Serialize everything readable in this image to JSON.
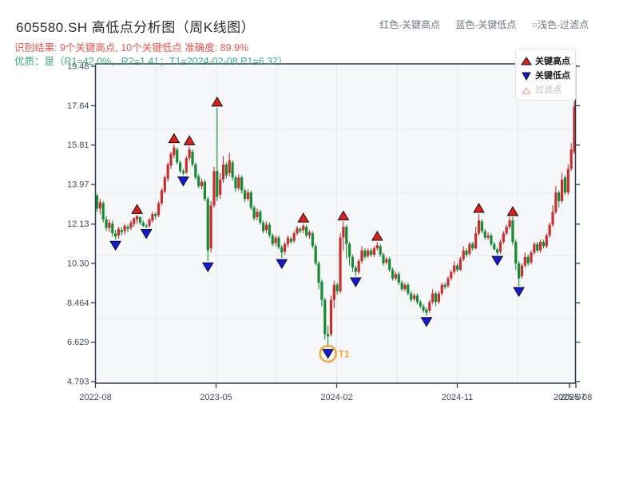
{
  "header": {
    "title": "605580.SH 高低点分析图（周K线图）",
    "result_line": "识别结果: 9个关键高点, 10个关键低点  准确度: 89.9%",
    "quality_line": "优质：是（R1=42.0%，R2=1.41；T1=2024-02-08 P1=6.37）",
    "hint_high": "红色-关键高点",
    "hint_low": "蓝色-关键低点",
    "hint_filter": "○浅色-过滤点"
  },
  "legend": {
    "items": [
      {
        "label": "关键高点",
        "marker": "up-triangle",
        "color": "#e11d1d"
      },
      {
        "label": "关键低点",
        "marker": "down-triangle",
        "color": "#1617dc"
      },
      {
        "label": "过滤点",
        "marker": "open-triangle",
        "color": "#ffffff"
      }
    ]
  },
  "colors": {
    "up_candle": "#c62f2f",
    "down_candle": "#188a34",
    "marker_high": "#e11d1d",
    "marker_low": "#1617dc",
    "marker_edge": "#111111",
    "filter_edge": "#ee8e8e",
    "t1_orange": "#efa83a",
    "grid": "#e6e8eb",
    "plot_bg": "#f6f7f9",
    "border": "#2b3b55",
    "axis_text": "#414b5e"
  },
  "chart_data": {
    "type": "candlestick",
    "title": "605580.SH 高低点分析图（周K线图）",
    "frequency": "weekly",
    "start_date": "2022-08-05",
    "x_axis": {
      "tick_labels": [
        "2022-08",
        "2023-05",
        "2024-02",
        "2024-11",
        "2025-07",
        "2025-08"
      ]
    },
    "y_axis": {
      "tick_labels": [
        "19.48",
        "17.64",
        "15.81",
        "13.97",
        "12.13",
        "10.30",
        "8.464",
        "6.629",
        "4.793"
      ],
      "range": [
        4.793,
        19.48
      ]
    },
    "candles": [
      [
        13.45,
        13.55,
        12.7,
        12.85
      ],
      [
        12.85,
        13.3,
        12.6,
        13.15
      ],
      [
        13.1,
        13.2,
        12.2,
        12.35
      ],
      [
        12.35,
        12.5,
        11.8,
        11.95
      ],
      [
        11.95,
        12.35,
        11.75,
        12.2
      ],
      [
        12.15,
        12.3,
        11.55,
        11.7
      ],
      [
        11.7,
        11.85,
        11.4,
        11.55
      ],
      [
        11.6,
        12.0,
        11.45,
        11.9
      ],
      [
        11.85,
        12.0,
        11.6,
        11.75
      ],
      [
        11.8,
        12.15,
        11.65,
        12.05
      ],
      [
        12.0,
        12.1,
        11.75,
        11.9
      ],
      [
        11.95,
        12.3,
        11.85,
        12.2
      ],
      [
        12.15,
        12.45,
        12.0,
        12.4
      ],
      [
        12.35,
        12.55,
        12.15,
        12.5
      ],
      [
        12.45,
        12.5,
        12.1,
        12.2
      ],
      [
        12.2,
        12.3,
        12.0,
        12.05
      ],
      [
        12.05,
        12.15,
        11.95,
        12.0
      ],
      [
        12.05,
        12.4,
        11.95,
        12.35
      ],
      [
        12.3,
        12.7,
        12.2,
        12.6
      ],
      [
        12.6,
        12.7,
        12.35,
        12.5
      ],
      [
        12.55,
        13.2,
        12.45,
        13.1
      ],
      [
        13.1,
        13.8,
        13.0,
        13.7
      ],
      [
        13.65,
        14.4,
        13.55,
        14.3
      ],
      [
        14.25,
        15.0,
        14.1,
        14.9
      ],
      [
        14.85,
        15.5,
        14.7,
        15.4
      ],
      [
        15.35,
        15.85,
        15.2,
        15.7
      ],
      [
        15.6,
        15.7,
        14.9,
        15.0
      ],
      [
        15.0,
        15.1,
        14.5,
        14.6
      ],
      [
        14.6,
        14.7,
        14.4,
        14.5
      ],
      [
        14.55,
        15.3,
        14.45,
        15.2
      ],
      [
        15.2,
        15.75,
        15.1,
        15.6
      ],
      [
        15.5,
        15.6,
        14.8,
        14.9
      ],
      [
        14.9,
        15.0,
        14.2,
        14.3
      ],
      [
        14.35,
        14.45,
        13.8,
        13.9
      ],
      [
        13.9,
        14.25,
        13.75,
        14.1
      ],
      [
        14.1,
        14.2,
        13.2,
        13.3
      ],
      [
        13.3,
        13.4,
        10.4,
        10.9
      ],
      [
        11.0,
        13.2,
        10.8,
        13.0
      ],
      [
        13.0,
        14.8,
        12.9,
        14.6
      ],
      [
        14.6,
        17.55,
        13.2,
        13.4
      ],
      [
        13.5,
        14.5,
        13.3,
        14.2
      ],
      [
        14.2,
        15.3,
        14.05,
        14.9
      ],
      [
        14.9,
        15.0,
        14.25,
        14.4
      ],
      [
        14.5,
        15.45,
        14.35,
        15.1
      ],
      [
        15.0,
        15.1,
        14.15,
        14.3
      ],
      [
        14.3,
        14.4,
        13.65,
        13.8
      ],
      [
        13.8,
        14.45,
        13.7,
        14.3
      ],
      [
        14.3,
        14.4,
        13.55,
        13.7
      ],
      [
        13.7,
        13.8,
        13.15,
        13.3
      ],
      [
        13.3,
        13.75,
        13.2,
        13.6
      ],
      [
        13.6,
        13.7,
        12.8,
        12.9
      ],
      [
        12.9,
        13.0,
        12.3,
        12.4
      ],
      [
        12.45,
        12.85,
        12.3,
        12.7
      ],
      [
        12.7,
        12.8,
        12.1,
        12.2
      ],
      [
        12.2,
        12.3,
        11.7,
        11.8
      ],
      [
        11.85,
        12.25,
        11.7,
        12.1
      ],
      [
        12.1,
        12.2,
        11.5,
        11.6
      ],
      [
        11.6,
        11.7,
        11.1,
        11.2
      ],
      [
        11.25,
        11.6,
        11.1,
        11.5
      ],
      [
        11.5,
        11.6,
        10.95,
        11.05
      ],
      [
        11.05,
        11.15,
        10.55,
        10.8
      ],
      [
        10.85,
        11.3,
        10.7,
        11.2
      ],
      [
        11.2,
        11.6,
        11.05,
        11.5
      ],
      [
        11.45,
        11.55,
        11.2,
        11.3
      ],
      [
        11.35,
        11.8,
        11.25,
        11.7
      ],
      [
        11.7,
        12.05,
        11.6,
        11.95
      ],
      [
        11.9,
        12.0,
        11.7,
        11.8
      ],
      [
        11.85,
        12.15,
        11.7,
        12.05
      ],
      [
        12.0,
        12.1,
        11.5,
        11.6
      ],
      [
        11.6,
        11.85,
        11.45,
        11.75
      ],
      [
        11.7,
        11.8,
        11.0,
        11.1
      ],
      [
        11.1,
        11.2,
        10.2,
        10.3
      ],
      [
        10.3,
        10.4,
        9.1,
        9.4
      ],
      [
        9.45,
        9.55,
        8.3,
        8.6
      ],
      [
        8.6,
        8.7,
        6.75,
        7.0
      ],
      [
        7.0,
        7.4,
        6.37,
        6.9
      ],
      [
        7.0,
        8.8,
        6.9,
        8.6
      ],
      [
        8.6,
        9.5,
        8.2,
        9.3
      ],
      [
        9.3,
        9.4,
        8.85,
        9.0
      ],
      [
        9.0,
        11.7,
        8.9,
        11.5
      ],
      [
        11.5,
        12.25,
        10.9,
        12.0
      ],
      [
        12.0,
        12.1,
        10.5,
        11.2
      ],
      [
        11.2,
        11.3,
        10.2,
        10.6
      ],
      [
        10.6,
        10.7,
        9.9,
        10.1
      ],
      [
        10.1,
        10.2,
        9.7,
        9.9
      ],
      [
        9.9,
        10.5,
        9.8,
        10.4
      ],
      [
        10.4,
        11.1,
        10.3,
        10.9
      ],
      [
        10.9,
        11.0,
        10.5,
        10.6
      ],
      [
        10.65,
        11.0,
        10.55,
        10.9
      ],
      [
        10.9,
        11.0,
        10.6,
        10.7
      ],
      [
        10.7,
        11.1,
        10.6,
        11.0
      ],
      [
        11.0,
        11.3,
        10.9,
        11.15
      ],
      [
        11.1,
        11.2,
        10.6,
        10.7
      ],
      [
        10.7,
        10.8,
        10.2,
        10.3
      ],
      [
        10.35,
        10.6,
        10.25,
        10.5
      ],
      [
        10.5,
        10.6,
        9.9,
        10.0
      ],
      [
        10.0,
        10.1,
        9.5,
        9.6
      ],
      [
        9.6,
        9.9,
        9.5,
        9.8
      ],
      [
        9.8,
        9.9,
        9.3,
        9.4
      ],
      [
        9.4,
        9.5,
        9.0,
        9.1
      ],
      [
        9.1,
        9.4,
        9.0,
        9.3
      ],
      [
        9.3,
        9.4,
        8.8,
        8.9
      ],
      [
        8.9,
        9.0,
        8.5,
        8.6
      ],
      [
        8.65,
        8.9,
        8.55,
        8.8
      ],
      [
        8.8,
        8.9,
        8.4,
        8.5
      ],
      [
        8.5,
        8.6,
        8.2,
        8.3
      ],
      [
        8.3,
        8.4,
        8.0,
        8.1
      ],
      [
        8.15,
        8.25,
        7.85,
        8.0
      ],
      [
        8.1,
        8.6,
        8.0,
        8.5
      ],
      [
        8.5,
        9.1,
        8.4,
        8.9
      ],
      [
        8.9,
        9.0,
        8.3,
        8.5
      ],
      [
        8.5,
        9.0,
        8.4,
        8.9
      ],
      [
        8.9,
        9.4,
        8.8,
        9.3
      ],
      [
        9.3,
        9.4,
        9.1,
        9.2
      ],
      [
        9.25,
        9.7,
        9.15,
        9.6
      ],
      [
        9.6,
        10.0,
        9.5,
        9.9
      ],
      [
        9.9,
        10.4,
        9.8,
        10.2
      ],
      [
        10.2,
        10.3,
        9.9,
        10.0
      ],
      [
        10.0,
        10.6,
        9.95,
        10.5
      ],
      [
        10.5,
        11.1,
        10.4,
        10.9
      ],
      [
        10.9,
        11.0,
        10.6,
        10.7
      ],
      [
        10.75,
        11.3,
        10.65,
        11.2
      ],
      [
        11.2,
        11.3,
        10.9,
        11.0
      ],
      [
        11.0,
        12.0,
        10.95,
        11.7
      ],
      [
        11.7,
        12.6,
        11.6,
        12.3
      ],
      [
        12.25,
        12.35,
        11.7,
        11.8
      ],
      [
        11.8,
        11.9,
        11.4,
        11.5
      ],
      [
        11.5,
        11.75,
        11.4,
        11.6
      ],
      [
        11.6,
        11.7,
        11.1,
        11.2
      ],
      [
        11.2,
        11.3,
        10.9,
        10.95
      ],
      [
        10.95,
        11.05,
        10.7,
        10.8
      ],
      [
        10.85,
        11.4,
        10.75,
        11.3
      ],
      [
        11.3,
        11.8,
        11.2,
        11.7
      ],
      [
        11.7,
        12.1,
        11.6,
        12.0
      ],
      [
        12.0,
        12.45,
        11.9,
        12.3
      ],
      [
        12.3,
        12.45,
        11.15,
        11.3
      ],
      [
        11.3,
        11.4,
        10.0,
        10.3
      ],
      [
        10.3,
        10.4,
        9.25,
        9.6
      ],
      [
        9.7,
        10.3,
        9.6,
        10.2
      ],
      [
        10.2,
        10.8,
        10.1,
        10.6
      ],
      [
        10.6,
        10.7,
        10.2,
        10.3
      ],
      [
        10.35,
        10.9,
        10.25,
        10.8
      ],
      [
        10.8,
        11.3,
        10.7,
        11.2
      ],
      [
        11.2,
        11.3,
        10.8,
        10.9
      ],
      [
        10.9,
        11.4,
        10.8,
        11.3
      ],
      [
        11.3,
        11.4,
        11.0,
        11.1
      ],
      [
        11.1,
        11.7,
        11.0,
        11.6
      ],
      [
        11.6,
        12.2,
        11.5,
        12.1
      ],
      [
        12.1,
        13.0,
        12.0,
        12.7
      ],
      [
        12.7,
        13.9,
        12.6,
        13.6
      ],
      [
        13.6,
        13.7,
        12.9,
        13.2
      ],
      [
        13.2,
        14.5,
        13.1,
        14.2
      ],
      [
        14.3,
        14.4,
        13.5,
        13.6
      ],
      [
        13.6,
        14.9,
        13.5,
        14.7
      ],
      [
        14.7,
        15.9,
        14.6,
        15.6
      ],
      [
        15.5,
        17.85,
        15.4,
        17.6
      ]
    ],
    "markers": {
      "key_high_indices": [
        13,
        25,
        30,
        39,
        67,
        80,
        91,
        124,
        135
      ],
      "key_low_indices": [
        6,
        16,
        28,
        36,
        60,
        75,
        84,
        107,
        130,
        137
      ],
      "t1": {
        "index": 75,
        "label": "T1",
        "date": "2024-02-08",
        "price": 6.37
      }
    }
  }
}
